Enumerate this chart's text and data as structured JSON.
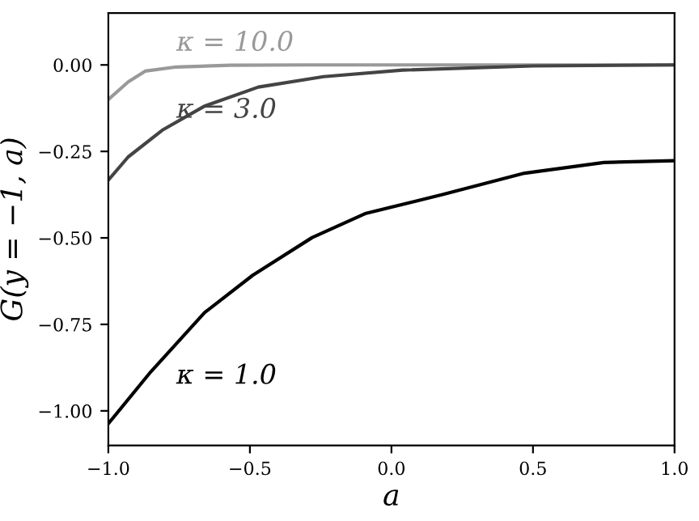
{
  "chart_data": {
    "type": "line",
    "xlabel": "a",
    "ylabel": "G(y = −1, a)",
    "xlim": [
      -1,
      1
    ],
    "ylim": [
      -1.1,
      0.15
    ],
    "xticks": [
      {
        "value": -1,
        "label": "−1.0"
      },
      {
        "value": -0.5,
        "label": "−0.5"
      },
      {
        "value": 0,
        "label": "0.0"
      },
      {
        "value": 0.5,
        "label": "0.5"
      },
      {
        "value": 1,
        "label": "1.0"
      }
    ],
    "yticks": [
      {
        "value": 0,
        "label": "0.00"
      },
      {
        "value": -0.25,
        "label": "−0.25"
      },
      {
        "value": -0.5,
        "label": "−0.50"
      },
      {
        "value": -0.75,
        "label": "−0.75"
      },
      {
        "value": -1,
        "label": "−1.00"
      }
    ],
    "grid": false,
    "legend": false,
    "marker": "none",
    "line_style": "solid",
    "series": [
      {
        "name": "κ = 10.0",
        "color": "#999999",
        "x": [
          -1,
          -0.93,
          -0.87,
          -0.76,
          -0.57,
          -0.3,
          0,
          0.5,
          1
        ],
        "values": [
          -0.1,
          -0.049,
          -0.018,
          -0.006,
          -0.001,
          0,
          0,
          0,
          0
        ]
      },
      {
        "name": "κ = 3.0",
        "color": "#444444",
        "x": [
          -1,
          -0.93,
          -0.81,
          -0.66,
          -0.47,
          -0.24,
          0.04,
          0.5,
          1
        ],
        "values": [
          -0.333,
          -0.266,
          -0.189,
          -0.119,
          -0.064,
          -0.034,
          -0.015,
          -0.003,
          0
        ]
      },
      {
        "name": "κ = 1.0",
        "color": "#000000",
        "x": [
          -1,
          -0.85,
          -0.66,
          -0.49,
          -0.28,
          -0.09,
          0.18,
          0.47,
          0.75,
          1
        ],
        "values": [
          -1.037,
          -0.887,
          -0.716,
          -0.608,
          -0.499,
          -0.429,
          -0.375,
          -0.313,
          -0.282,
          -0.277
        ]
      }
    ]
  }
}
